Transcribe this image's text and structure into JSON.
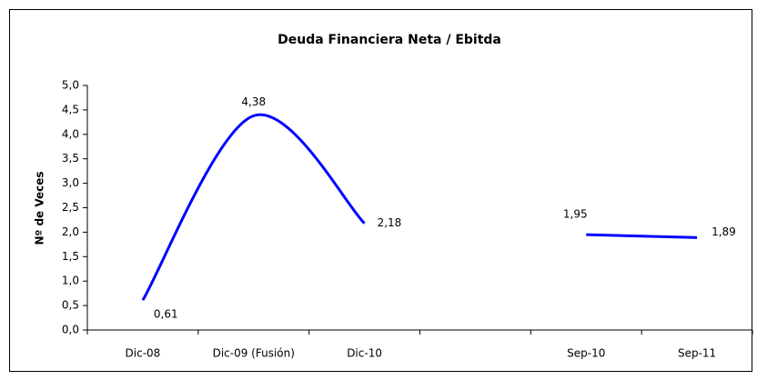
{
  "chart_data": {
    "type": "line",
    "title": "Deuda Financiera Neta / Ebitda",
    "y_label": "Nº de Veces",
    "categories": [
      "Dic-08",
      "Dic-09 (Fusión)",
      "Dic-10",
      null,
      "Sep-10",
      "Sep-11"
    ],
    "values": [
      0.61,
      4.38,
      2.18,
      null,
      1.95,
      1.89
    ],
    "value_labels": [
      "0,61",
      "4,38",
      "2,18",
      null,
      "1,95",
      "1,89"
    ],
    "color": "#0000ff",
    "ylim": [
      0,
      5
    ],
    "yticks": [
      {
        "value": 0,
        "label": "0,0"
      },
      {
        "value": 0.5,
        "label": "0,5"
      },
      {
        "value": 1,
        "label": "1,0"
      },
      {
        "value": 1.5,
        "label": "1,5"
      },
      {
        "value": 2,
        "label": "2,0"
      },
      {
        "value": 2.5,
        "label": "2,5"
      },
      {
        "value": 3,
        "label": "3,0"
      },
      {
        "value": 3.5,
        "label": "3,5"
      },
      {
        "value": 4,
        "label": "4,0"
      },
      {
        "value": 4.5,
        "label": "4,5"
      },
      {
        "value": 5,
        "label": "5,0"
      }
    ],
    "grid": false
  }
}
